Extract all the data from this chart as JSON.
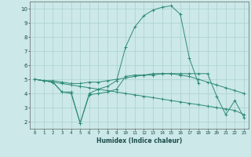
{
  "x": [
    0,
    1,
    2,
    3,
    4,
    5,
    6,
    7,
    8,
    9,
    10,
    11,
    12,
    13,
    14,
    15,
    16,
    17,
    18,
    19,
    20,
    21,
    22,
    23
  ],
  "line1": [
    5.0,
    4.9,
    4.8,
    4.1,
    4.1,
    1.9,
    3.9,
    4.0,
    4.1,
    4.3,
    5.2,
    5.3,
    5.3,
    5.4,
    5.4,
    5.4,
    5.4,
    5.4,
    5.4,
    5.4,
    3.8,
    2.5,
    3.5,
    2.3
  ],
  "line2": [
    5.0,
    4.9,
    4.9,
    4.8,
    4.7,
    4.7,
    4.8,
    4.8,
    4.9,
    5.0,
    5.1,
    5.2,
    5.3,
    5.3,
    5.4,
    5.4,
    5.3,
    5.2,
    5.0,
    4.8,
    4.6,
    4.4,
    4.2,
    4.0
  ],
  "line3": [
    5.0,
    4.9,
    4.8,
    4.1,
    4.0,
    1.9,
    4.0,
    4.3,
    4.5,
    4.9,
    7.3,
    8.7,
    9.5,
    9.9,
    10.1,
    10.2,
    9.6,
    6.5,
    4.7,
    null,
    null,
    null,
    null,
    null
  ],
  "line4": [
    5.0,
    4.9,
    4.8,
    4.7,
    4.6,
    4.5,
    4.4,
    4.3,
    4.2,
    4.1,
    4.0,
    3.9,
    3.8,
    3.7,
    3.6,
    3.5,
    3.4,
    3.3,
    3.2,
    3.1,
    3.0,
    2.9,
    2.8,
    2.5
  ],
  "color": "#2e8b78",
  "bg_color": "#cce8e8",
  "grid_color": "#aad0d0",
  "xlabel": "Humidex (Indice chaleur)",
  "ylabel_ticks": [
    2,
    3,
    4,
    5,
    6,
    7,
    8,
    9,
    10
  ],
  "xlim": [
    -0.5,
    23.5
  ],
  "ylim": [
    1.5,
    10.5
  ]
}
